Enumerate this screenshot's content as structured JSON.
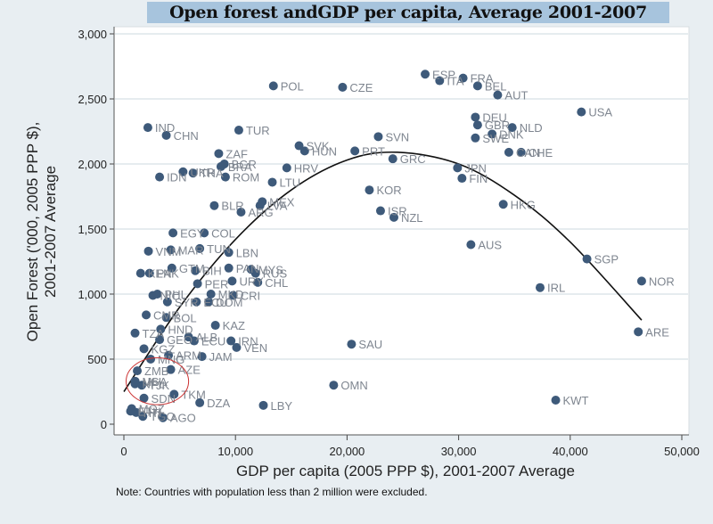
{
  "chart_data": {
    "type": "scatter",
    "title": "Open forest andGDP per capita, Average 2001-2007",
    "xlabel": "GDP per capita (2005 PPP $), 2001-2007 Average",
    "ylabel_lines": [
      "Open Forest ('000, 2005 PPP $),",
      "2001-2007 Average"
    ],
    "note": "Note: Countries with population less than 2 million were excluded.",
    "xlim": [
      0,
      50000
    ],
    "ylim": [
      0,
      3000
    ],
    "xticks": [
      0,
      10000,
      20000,
      30000,
      40000,
      50000
    ],
    "xtick_labels": [
      "0",
      "10,000",
      "20,000",
      "30,000",
      "40,000",
      "50,000"
    ],
    "yticks": [
      0,
      500,
      1000,
      1500,
      2000,
      2500,
      3000
    ],
    "ytick_labels": [
      "0",
      "500",
      "1,000",
      "1,500",
      "2,000",
      "2,500",
      "3,000"
    ],
    "grid": "horizontal",
    "marker_color": "#3e5a7a",
    "label_color": "#7f8690",
    "fit_line": {
      "type": "quadratic",
      "color": "#111111",
      "x_range": [
        0,
        46400
      ],
      "points": [
        [
          0,
          250
        ],
        [
          5000,
          900
        ],
        [
          10000,
          1420
        ],
        [
          15000,
          1800
        ],
        [
          20000,
          2030
        ],
        [
          24500,
          2090
        ],
        [
          30000,
          2000
        ],
        [
          35000,
          1760
        ],
        [
          40000,
          1400
        ],
        [
          46400,
          800
        ]
      ]
    },
    "highlight_ellipse": {
      "center": [
        3000,
        330
      ],
      "rx_data": 2800,
      "ry_data": 180,
      "color": "#cc3333"
    },
    "points": [
      {
        "label": "POL",
        "x": 13400,
        "y": 2600
      },
      {
        "label": "CZE",
        "x": 19600,
        "y": 2590
      },
      {
        "label": "IND",
        "x": 2150,
        "y": 2280
      },
      {
        "label": "CHN",
        "x": 3800,
        "y": 2220
      },
      {
        "label": "TUR",
        "x": 10300,
        "y": 2260
      },
      {
        "label": "ESP",
        "x": 27000,
        "y": 2690
      },
      {
        "label": "ITA",
        "x": 28300,
        "y": 2640
      },
      {
        "label": "FRA",
        "x": 30400,
        "y": 2660
      },
      {
        "label": "BEL",
        "x": 31700,
        "y": 2600
      },
      {
        "label": "AUT",
        "x": 33500,
        "y": 2530
      },
      {
        "label": "USA",
        "x": 41000,
        "y": 2400
      },
      {
        "label": "SVN",
        "x": 22800,
        "y": 2210
      },
      {
        "label": "DEU",
        "x": 31500,
        "y": 2360
      },
      {
        "label": "GBR",
        "x": 31700,
        "y": 2300
      },
      {
        "label": "NLD",
        "x": 34800,
        "y": 2280
      },
      {
        "label": "DNK",
        "x": 33000,
        "y": 2230
      },
      {
        "label": "SWE",
        "x": 31500,
        "y": 2200
      },
      {
        "label": "AUT2",
        "x": 34500,
        "y": 2090,
        "text": "CAN"
      },
      {
        "label": "CHE",
        "x": 35600,
        "y": 2090
      },
      {
        "label": "ZAF",
        "x": 8500,
        "y": 2080
      },
      {
        "label": "BGR",
        "x": 9000,
        "y": 2000
      },
      {
        "label": "BRA",
        "x": 8700,
        "y": 1980
      },
      {
        "label": "UKR",
        "x": 5300,
        "y": 1940
      },
      {
        "label": "THA",
        "x": 6200,
        "y": 1930
      },
      {
        "label": "ROM",
        "x": 9100,
        "y": 1900
      },
      {
        "label": "IDN",
        "x": 3200,
        "y": 1900
      },
      {
        "label": "SVK",
        "x": 15700,
        "y": 2140
      },
      {
        "label": "HUN",
        "x": 16200,
        "y": 2100
      },
      {
        "label": "PRT",
        "x": 20700,
        "y": 2100
      },
      {
        "label": "GRC",
        "x": 24100,
        "y": 2040
      },
      {
        "label": "HRV",
        "x": 14600,
        "y": 1970
      },
      {
        "label": "LTU",
        "x": 13300,
        "y": 1860
      },
      {
        "label": "JPN",
        "x": 29900,
        "y": 1970
      },
      {
        "label": "FIN",
        "x": 30300,
        "y": 1890
      },
      {
        "label": "KOR",
        "x": 22000,
        "y": 1800
      },
      {
        "label": "ISR",
        "x": 23000,
        "y": 1640
      },
      {
        "label": "NZL",
        "x": 24200,
        "y": 1590
      },
      {
        "label": "HKG",
        "x": 34000,
        "y": 1690
      },
      {
        "label": "BLR",
        "x": 8100,
        "y": 1680
      },
      {
        "label": "ARG",
        "x": 10500,
        "y": 1630
      },
      {
        "label": "MEX",
        "x": 12400,
        "y": 1710
      },
      {
        "label": "LVA",
        "x": 12200,
        "y": 1680
      },
      {
        "label": "EGY",
        "x": 4400,
        "y": 1470
      },
      {
        "label": "COL",
        "x": 7200,
        "y": 1470
      },
      {
        "label": "VNM",
        "x": 2200,
        "y": 1330
      },
      {
        "label": "MAR",
        "x": 4200,
        "y": 1340
      },
      {
        "label": "TUN",
        "x": 6800,
        "y": 1350
      },
      {
        "label": "LBN",
        "x": 9400,
        "y": 1320
      },
      {
        "label": "GTM",
        "x": 4300,
        "y": 1200
      },
      {
        "label": "KEN",
        "x": 1500,
        "y": 1160
      },
      {
        "label": "PAK",
        "x": 2300,
        "y": 1160
      },
      {
        "label": "BIH",
        "x": 6400,
        "y": 1180
      },
      {
        "label": "PAN",
        "x": 9400,
        "y": 1200
      },
      {
        "label": "MYS",
        "x": 11400,
        "y": 1190
      },
      {
        "label": "RUS",
        "x": 11800,
        "y": 1160
      },
      {
        "label": "PER",
        "x": 6600,
        "y": 1080
      },
      {
        "label": "URY",
        "x": 9700,
        "y": 1100
      },
      {
        "label": "CHL",
        "x": 12000,
        "y": 1090
      },
      {
        "label": "PHL",
        "x": 3000,
        "y": 1000
      },
      {
        "label": "MKD",
        "x": 7800,
        "y": 1000
      },
      {
        "label": "NIC",
        "x": 2600,
        "y": 990
      },
      {
        "label": "CRI",
        "x": 9800,
        "y": 990
      },
      {
        "label": "SYR",
        "x": 3900,
        "y": 940
      },
      {
        "label": "DOM",
        "x": 7600,
        "y": 940
      },
      {
        "label": "ECU",
        "x": 6500,
        "y": 940
      },
      {
        "label": "CMR",
        "x": 2000,
        "y": 840
      },
      {
        "label": "BOL",
        "x": 3800,
        "y": 820
      },
      {
        "label": "KAZ",
        "x": 8200,
        "y": 760
      },
      {
        "label": "HND",
        "x": 3300,
        "y": 730
      },
      {
        "label": "TZA",
        "x": 1000,
        "y": 700
      },
      {
        "label": "GEO",
        "x": 3200,
        "y": 650
      },
      {
        "label": "ALB",
        "x": 5800,
        "y": 670
      },
      {
        "label": "ECU2",
        "x": 6300,
        "y": 640,
        "text": "ECU"
      },
      {
        "label": "IRN",
        "x": 9600,
        "y": 640
      },
      {
        "label": "VEN",
        "x": 10100,
        "y": 590
      },
      {
        "label": "KGZ",
        "x": 1800,
        "y": 580
      },
      {
        "label": "ARM",
        "x": 4000,
        "y": 530
      },
      {
        "label": "JAM",
        "x": 7000,
        "y": 520
      },
      {
        "label": "MNG",
        "x": 2400,
        "y": 500
      },
      {
        "label": "AZE",
        "x": 4200,
        "y": 420
      },
      {
        "label": "ZMB",
        "x": 1200,
        "y": 410
      },
      {
        "label": "MLI",
        "x": 1000,
        "y": 330
      },
      {
        "label": "NPL",
        "x": 1000,
        "y": 310
      },
      {
        "label": "UGA",
        "x": 1000,
        "y": 330
      },
      {
        "label": "TJK",
        "x": 1600,
        "y": 300
      },
      {
        "label": "TKM",
        "x": 4500,
        "y": 230
      },
      {
        "label": "SDN",
        "x": 1800,
        "y": 200
      },
      {
        "label": "MOZ",
        "x": 700,
        "y": 120
      },
      {
        "label": "ETH",
        "x": 600,
        "y": 100
      },
      {
        "label": "HTI",
        "x": 1100,
        "y": 90
      },
      {
        "label": "TGO",
        "x": 1700,
        "y": 60
      },
      {
        "label": "AGO",
        "x": 3500,
        "y": 50
      },
      {
        "label": "DZA",
        "x": 6800,
        "y": 165
      },
      {
        "label": "LBY",
        "x": 12500,
        "y": 145
      },
      {
        "label": "SAU",
        "x": 20400,
        "y": 615
      },
      {
        "label": "OMN",
        "x": 18800,
        "y": 300
      },
      {
        "label": "KWT",
        "x": 38700,
        "y": 185
      },
      {
        "label": "AUS",
        "x": 31100,
        "y": 1380
      },
      {
        "label": "SGP",
        "x": 41500,
        "y": 1270
      },
      {
        "label": "IRL",
        "x": 37300,
        "y": 1050
      },
      {
        "label": "NOR",
        "x": 46400,
        "y": 1100
      },
      {
        "label": "ARE",
        "x": 46100,
        "y": 710
      }
    ]
  }
}
